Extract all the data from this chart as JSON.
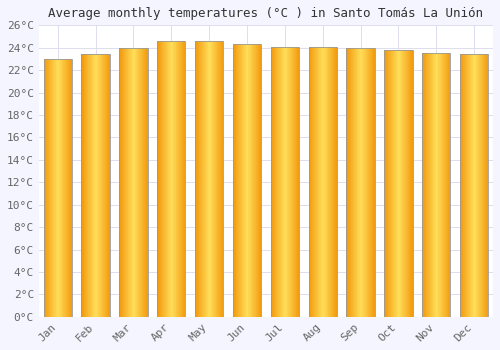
{
  "title": "Average monthly temperatures (°C ) in Santo Tomás La Unión",
  "months": [
    "Jan",
    "Feb",
    "Mar",
    "Apr",
    "May",
    "Jun",
    "Jul",
    "Aug",
    "Sep",
    "Oct",
    "Nov",
    "Dec"
  ],
  "values": [
    23.0,
    23.4,
    24.0,
    24.6,
    24.6,
    24.3,
    24.1,
    24.1,
    24.0,
    23.8,
    23.5,
    23.4
  ],
  "bar_color_center": "#FFD966",
  "bar_color_edge": "#E8A000",
  "bar_border_color": "#999999",
  "background_color": "#F5F5FF",
  "plot_bg_color": "#FFFFFF",
  "grid_color": "#DDDDEE",
  "ylim": [
    0,
    26
  ],
  "yticks": [
    0,
    2,
    4,
    6,
    8,
    10,
    12,
    14,
    16,
    18,
    20,
    22,
    24,
    26
  ],
  "title_fontsize": 9,
  "tick_fontsize": 8,
  "tick_color": "#666666",
  "bar_width": 0.75,
  "figsize": [
    5.0,
    3.5
  ],
  "dpi": 100
}
